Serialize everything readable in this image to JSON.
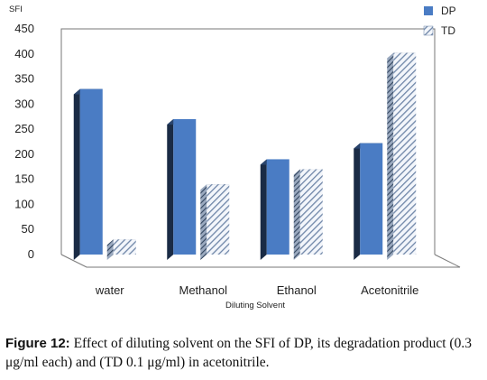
{
  "chart_data": {
    "type": "bar",
    "ylabel": "SFI",
    "xlabel": "Diluting Solvent",
    "ylim": [
      0,
      450
    ],
    "yticks": [
      0,
      50,
      100,
      150,
      200,
      250,
      300,
      350,
      400,
      450
    ],
    "categories": [
      "water",
      "Methanol",
      "Ethanol",
      "Acetonitrile"
    ],
    "series": [
      {
        "name": "DP",
        "values": [
          330,
          270,
          190,
          222
        ],
        "color": "#4a7cc4",
        "pattern": "solid"
      },
      {
        "name": "TD",
        "values": [
          30,
          140,
          170,
          402
        ],
        "color": "#6f86a8",
        "pattern": "hatched"
      }
    ],
    "legend": "top-right",
    "grid": false,
    "style": "3d"
  },
  "caption": {
    "label": "Figure 12:",
    "text": " Effect of diluting solvent on the SFI of DP, its degradation product (0.3 μg/ml each) and (TD 0.1 μg/ml) in acetonitrile."
  }
}
